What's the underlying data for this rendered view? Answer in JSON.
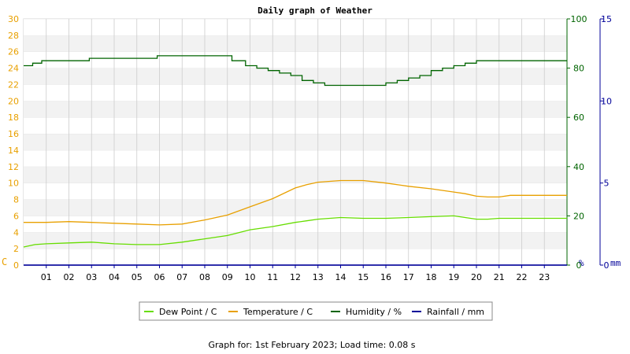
{
  "chart_data": {
    "type": "line",
    "title": "Daily graph of Weather",
    "footer": "Graph for: 1st February 2023; Load time: 0.08 s",
    "x": {
      "range": [
        0,
        24
      ],
      "tick_labels": [
        "01",
        "02",
        "03",
        "04",
        "05",
        "06",
        "07",
        "08",
        "09",
        "10",
        "11",
        "12",
        "13",
        "14",
        "15",
        "16",
        "17",
        "18",
        "19",
        "20",
        "21",
        "22",
        "23"
      ]
    },
    "y_left": {
      "unit_label": "C",
      "range": [
        0,
        30
      ],
      "ticks": [
        0,
        2,
        4,
        6,
        8,
        10,
        12,
        14,
        16,
        18,
        20,
        22,
        24,
        26,
        28,
        30
      ],
      "color": "#e8a000"
    },
    "y_right_humidity": {
      "unit_label": "%",
      "range": [
        0,
        100
      ],
      "ticks": [
        0,
        20,
        40,
        60,
        80,
        100
      ],
      "color": "#006400"
    },
    "y_right_rain": {
      "unit_label": "mm",
      "range": [
        0,
        15
      ],
      "ticks": [
        0,
        5,
        10,
        15
      ],
      "color": "#000099"
    },
    "grid": true,
    "legend": {
      "placement": "bottom-center",
      "entries": [
        "Dew Point / C",
        "Temperature / C",
        "Humidity / %",
        "Rainfall / mm"
      ]
    },
    "series": [
      {
        "name": "Dew Point / C",
        "axis": "left",
        "color": "#66dd00",
        "x": [
          0,
          0.5,
          1,
          2,
          3,
          4,
          5,
          6,
          7,
          8,
          8.5,
          9,
          10,
          11,
          12,
          12.5,
          13,
          14,
          15,
          16,
          17,
          18,
          19,
          20,
          20.5,
          21,
          22,
          23,
          24
        ],
        "y": [
          2.2,
          2.5,
          2.6,
          2.7,
          2.8,
          2.6,
          2.5,
          2.5,
          2.8,
          3.2,
          3.4,
          3.6,
          4.3,
          4.7,
          5.2,
          5.4,
          5.6,
          5.8,
          5.7,
          5.7,
          5.8,
          5.9,
          6.0,
          5.6,
          5.6,
          5.7,
          5.7,
          5.7,
          5.7
        ]
      },
      {
        "name": "Temperature / C",
        "axis": "left",
        "color": "#e8a000",
        "x": [
          0,
          1,
          2,
          3,
          4,
          5,
          6,
          7,
          8,
          9,
          10,
          11,
          12,
          12.5,
          13,
          14,
          15,
          16,
          17,
          18,
          19,
          19.5,
          20,
          20.5,
          21,
          21.5,
          22,
          23,
          24
        ],
        "y": [
          5.2,
          5.2,
          5.3,
          5.2,
          5.1,
          5.0,
          4.9,
          5.0,
          5.5,
          6.1,
          7.1,
          8.1,
          9.4,
          9.8,
          10.1,
          10.3,
          10.3,
          10.0,
          9.6,
          9.3,
          8.9,
          8.7,
          8.4,
          8.3,
          8.3,
          8.5,
          8.5,
          8.5,
          8.5
        ]
      },
      {
        "name": "Humidity / %",
        "axis": "right_humidity",
        "color": "#006400",
        "x": [
          0,
          0.4,
          0.8,
          2.5,
          2.9,
          5.5,
          5.9,
          8.8,
          9.2,
          9.8,
          10.3,
          10.8,
          11.3,
          11.8,
          12.3,
          12.8,
          13.3,
          14,
          14.5,
          15,
          15.5,
          16,
          16.5,
          17,
          17.5,
          18,
          18.5,
          19,
          19.5,
          20,
          21,
          21.5,
          22,
          23,
          24
        ],
        "y": [
          81,
          82,
          83,
          83,
          84,
          84,
          85,
          85,
          83,
          81,
          80,
          79,
          78,
          77,
          75,
          74,
          73,
          73,
          73,
          73,
          73,
          74,
          75,
          76,
          77,
          79,
          80,
          81,
          82,
          83,
          83,
          83,
          83,
          83,
          83
        ]
      },
      {
        "name": "Rainfall / mm",
        "axis": "right_rain",
        "color": "#000099",
        "x": [
          0,
          24
        ],
        "y": [
          0,
          0
        ]
      }
    ]
  }
}
